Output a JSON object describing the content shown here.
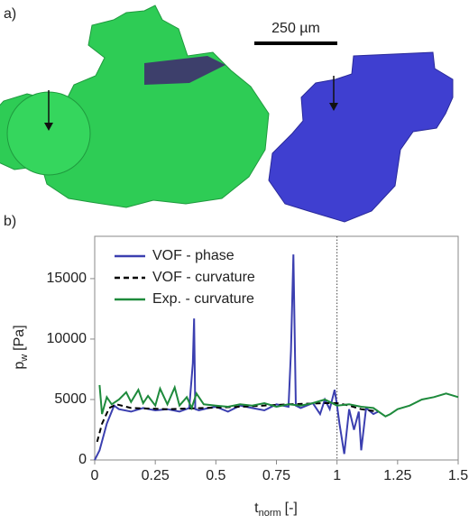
{
  "panel_a": {
    "label": "a)",
    "scale_bar": "250 µm"
  },
  "chart_data": {
    "type": "line",
    "panel_label": "b)",
    "xlabel": {
      "base": "t",
      "sub": "norm",
      "unit": "[-]"
    },
    "ylabel": {
      "base": "p",
      "sub": "w",
      "unit": "[Pa]"
    },
    "xlim": [
      0,
      1.5
    ],
    "xticks": [
      0,
      0.25,
      0.5,
      0.75,
      1,
      1.25,
      1.5
    ],
    "ylim": [
      0,
      18500
    ],
    "yticks": [
      0,
      5000,
      10000,
      15000
    ],
    "vline": 1,
    "legend": "upper-left",
    "series": [
      {
        "name": "VOF - phase",
        "color": "#3b3fb0",
        "dash": false,
        "x": [
          0,
          0.02,
          0.05,
          0.08,
          0.1,
          0.15,
          0.2,
          0.25,
          0.3,
          0.35,
          0.39,
          0.405,
          0.41,
          0.415,
          0.43,
          0.47,
          0.5,
          0.55,
          0.6,
          0.65,
          0.7,
          0.75,
          0.8,
          0.81,
          0.82,
          0.83,
          0.85,
          0.9,
          0.93,
          0.95,
          0.97,
          0.99,
          1.0,
          1.01,
          1.03,
          1.05,
          1.07,
          1.09,
          1.1,
          1.12,
          1.15,
          1.17
        ],
        "values": [
          0,
          800,
          3000,
          4500,
          4200,
          4000,
          4300,
          4100,
          4200,
          4000,
          4300,
          8000,
          11700,
          4200,
          4100,
          4300,
          4400,
          4000,
          4500,
          4300,
          4100,
          4600,
          4400,
          9000,
          17000,
          4500,
          4300,
          4700,
          3800,
          5000,
          4200,
          5800,
          4500,
          3000,
          500,
          4200,
          2500,
          4000,
          800,
          4300,
          3800,
          4000
        ]
      },
      {
        "name": "VOF - curvature",
        "color": "#000000",
        "dash": true,
        "x": [
          0.01,
          0.03,
          0.06,
          0.09,
          0.15,
          0.3,
          0.45,
          0.6,
          0.8,
          0.95,
          1.0,
          1.05,
          1.1,
          1.17
        ],
        "values": [
          1500,
          3000,
          4300,
          4600,
          4300,
          4200,
          4300,
          4400,
          4600,
          4700,
          4700,
          4500,
          4200,
          4000
        ]
      },
      {
        "name": "Exp. - curvature",
        "color": "#1e8a3c",
        "dash": false,
        "x": [
          0.02,
          0.03,
          0.05,
          0.07,
          0.1,
          0.13,
          0.15,
          0.18,
          0.2,
          0.22,
          0.25,
          0.27,
          0.3,
          0.33,
          0.35,
          0.38,
          0.4,
          0.42,
          0.45,
          0.5,
          0.55,
          0.6,
          0.65,
          0.7,
          0.75,
          0.8,
          0.85,
          0.9,
          0.95,
          1.0,
          1.05,
          1.1,
          1.15,
          1.2,
          1.22,
          1.25,
          1.3,
          1.35,
          1.4,
          1.45,
          1.5
        ],
        "values": [
          6200,
          3800,
          5200,
          4600,
          5000,
          5600,
          4800,
          5800,
          4700,
          5300,
          4500,
          5900,
          4600,
          6000,
          4500,
          5200,
          4300,
          5500,
          4600,
          4500,
          4400,
          4600,
          4500,
          4700,
          4400,
          4600,
          4500,
          4700,
          5000,
          4500,
          4600,
          4400,
          4300,
          3600,
          3800,
          4200,
          4500,
          5000,
          5200,
          5500,
          5200
        ]
      }
    ]
  }
}
